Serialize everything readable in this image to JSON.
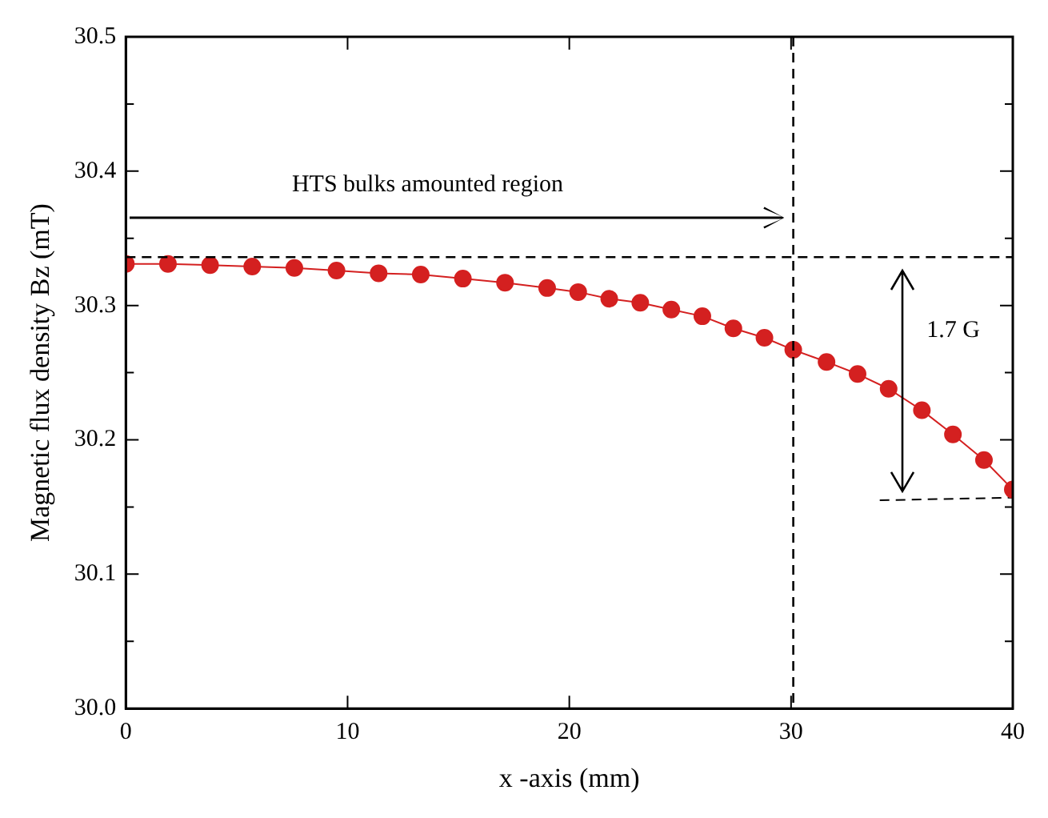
{
  "chart_data": {
    "type": "line",
    "xlabel": "x -axis (mm)",
    "ylabel": "Magnetic flux density Bz (mT)",
    "xlim": [
      0,
      40
    ],
    "xticks": [
      0,
      10,
      20,
      30,
      40
    ],
    "ylim": [
      30,
      30.5
    ],
    "yticks": [
      {
        "value": 30,
        "label": "30.0"
      },
      {
        "value": 30.05,
        "label": null
      },
      {
        "value": 30.1,
        "label": "30.1"
      },
      {
        "value": 30.15,
        "label": null
      },
      {
        "value": 30.2,
        "label": "30.2"
      },
      {
        "value": 30.25,
        "label": null
      },
      {
        "value": 30.3,
        "label": "30.3"
      },
      {
        "value": 30.35,
        "label": null
      },
      {
        "value": 30.4,
        "label": "30.4"
      },
      {
        "value": 30.45,
        "label": null
      },
      {
        "value": 30.5,
        "label": "30.5"
      }
    ],
    "grid": false,
    "legend": false,
    "marker": "circle",
    "line_style": "solid",
    "series": [
      {
        "color": "#d42020",
        "x": [
          0,
          1.9,
          3.8,
          5.7,
          7.6,
          9.5,
          11.4,
          13.3,
          15.2,
          17.1,
          19.0,
          20.4,
          21.8,
          23.2,
          24.6,
          26.0,
          27.4,
          28.8,
          30.1,
          31.6,
          33.0,
          34.4,
          35.9,
          37.3,
          38.7,
          40
        ],
        "values": [
          30.331,
          30.331,
          30.33,
          30.329,
          30.328,
          30.326,
          30.324,
          30.323,
          30.32,
          30.317,
          30.313,
          30.31,
          30.305,
          30.302,
          30.297,
          30.292,
          30.283,
          30.276,
          30.267,
          30.258,
          30.249,
          30.238,
          30.222,
          30.204,
          30.185,
          30.163
        ]
      },
      {
        "type": "line",
        "color": "#000000",
        "marker": "none",
        "line_style": "dashed",
        "x": [
          34,
          40
        ],
        "values": [
          30.155,
          30.157
        ]
      }
    ],
    "ref_lines": [
      {
        "axis": "y",
        "value": 30.336,
        "line_style": "dashed",
        "color": "#000000"
      },
      {
        "axis": "x",
        "value": 30.1,
        "line_style": "dashed",
        "color": "#000000"
      }
    ],
    "annotations": [
      "HTS bulks amounted region",
      "1.7 G"
    ]
  }
}
